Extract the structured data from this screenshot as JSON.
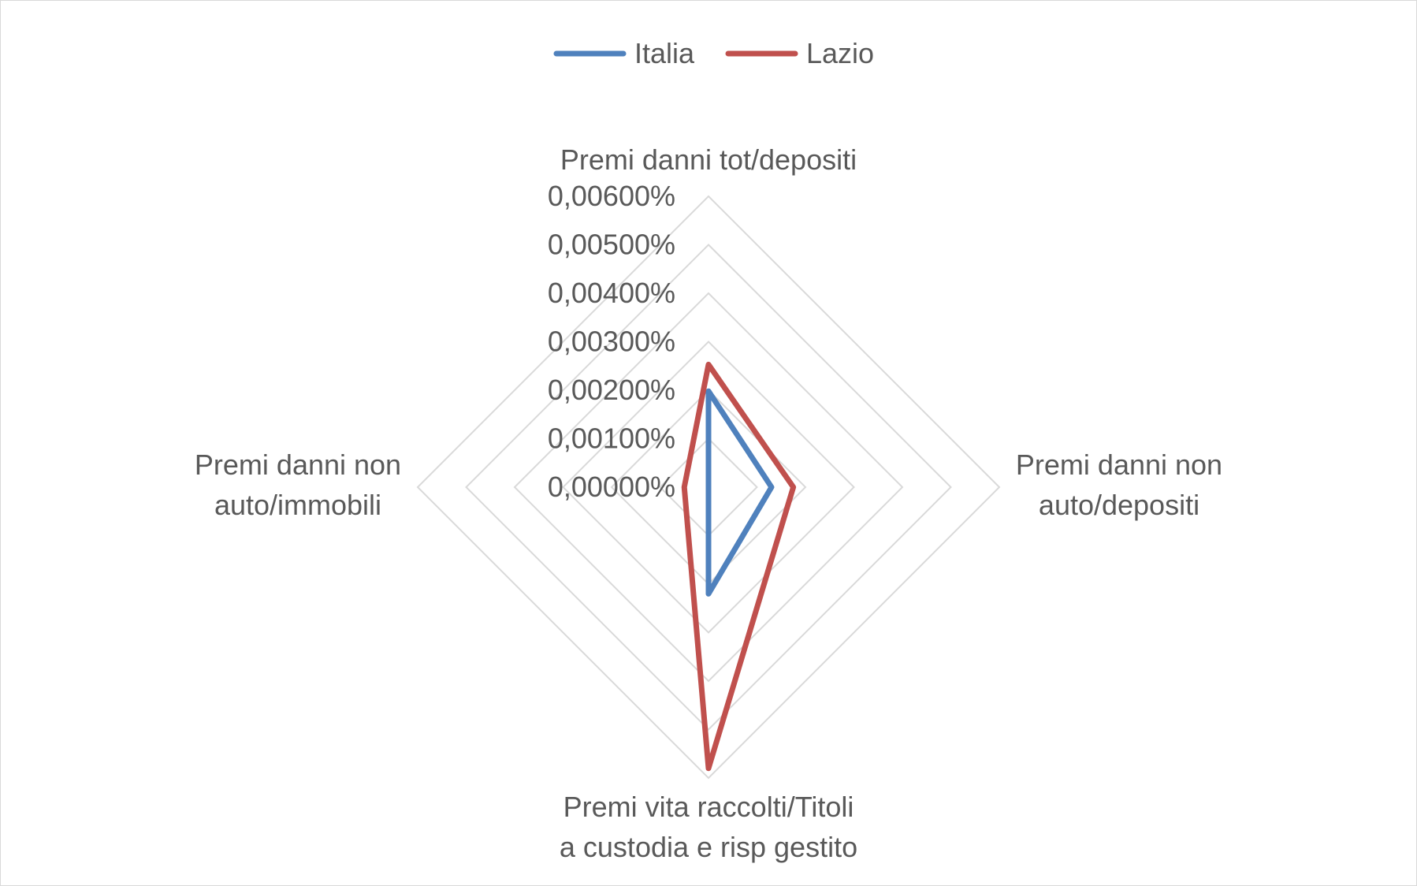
{
  "chart_data": {
    "type": "radar",
    "title": "",
    "categories": [
      "Premi danni tot/depositi",
      "Premi danni non auto/depositi",
      "Premi vita raccolti/Titoli a custodia e risp gestito",
      "Premi danni non auto/immobili"
    ],
    "series": [
      {
        "name": "Italia",
        "color": "#4f81bd",
        "values": [
          0.00198,
          0.0013,
          0.0022,
          0.0
        ]
      },
      {
        "name": "Lazio",
        "color": "#c0504d",
        "values": [
          0.00253,
          0.00175,
          0.0058,
          0.0005
        ]
      }
    ],
    "radial_axis": {
      "min": 0,
      "max": 0.006,
      "step": 0.001,
      "tick_labels": [
        "0,00000%",
        "0,00100%",
        "0,00200%",
        "0,00300%",
        "0,00400%",
        "0,00500%",
        "0,00600%"
      ]
    },
    "legend": {
      "position": "top",
      "entries": [
        "Italia",
        "Lazio"
      ]
    },
    "grid": true
  }
}
